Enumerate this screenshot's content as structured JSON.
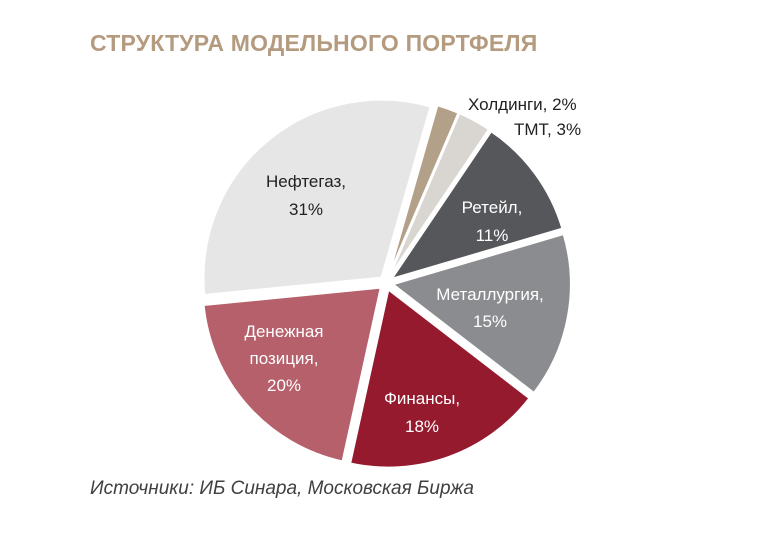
{
  "colors": {
    "title": "#b49a7e",
    "oil_gas": "#e6e6e6",
    "holdings": "#b2a089",
    "tmt": "#d9d5d1",
    "retail": "#55575b",
    "metallurgy": "#8b8c8f",
    "finance": "#951a2e",
    "cash": "#b5606b"
  },
  "chart_data": {
    "type": "pie",
    "title": "СТРУКТУРА МОДЕЛЬНОГО ПОРТФЕЛЯ",
    "slices": [
      {
        "label": "Холдинги",
        "value": 2,
        "display": "Холдинги, 2%",
        "color": "#b2a089"
      },
      {
        "label": "ТМТ",
        "value": 3,
        "display": "ТМТ, 3%",
        "color": "#d9d5d1"
      },
      {
        "label": "Ретейл",
        "value": 11,
        "display": "11%",
        "color": "#55575b"
      },
      {
        "label": "Металлургия",
        "value": 15,
        "display": "15%",
        "color": "#8b8c8f"
      },
      {
        "label": "Финансы",
        "value": 18,
        "display": "18%",
        "color": "#951a2e"
      },
      {
        "label": "Денежная позиция",
        "value": 20,
        "display": "20%",
        "color": "#b5606b"
      },
      {
        "label": "Нефтегаз",
        "value": 31,
        "display": "31%",
        "color": "#e6e6e6"
      }
    ],
    "labels": {
      "holdings": "Холдинги, 2%",
      "tmt": "ТМТ, 3%",
      "retail_name": "Ретейл,",
      "retail_pct": "11%",
      "metallurgy_name": "Металлургия,",
      "metallurgy_pct": "15%",
      "finance_name": "Финансы,",
      "finance_pct": "18%",
      "cash_name_1": "Денежная",
      "cash_name_2": "позиция,",
      "cash_pct": "20%",
      "oil_name": "Нефтегаз,",
      "oil_pct": "31%"
    }
  },
  "source": "Источники: ИБ Синара, Московская Биржа"
}
